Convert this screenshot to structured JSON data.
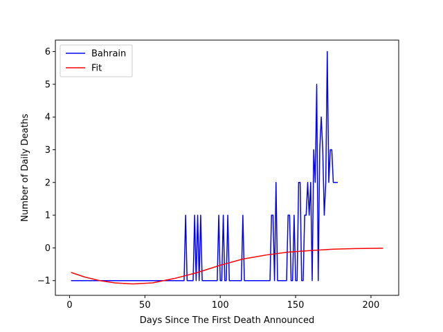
{
  "chart_data": {
    "type": "line",
    "title": "",
    "xlabel": "Days Since The First Death Announced",
    "ylabel": "Number of Daily Deaths",
    "xlim": [
      -9.4,
      218.4
    ],
    "ylim": [
      -1.45,
      6.35
    ],
    "xticks": [
      0,
      50,
      100,
      150,
      200
    ],
    "yticks": [
      -1,
      0,
      1,
      2,
      3,
      4,
      5,
      6
    ],
    "xtick_labels": [
      "0",
      "50",
      "100",
      "150",
      "200"
    ],
    "ytick_labels": [
      "−1",
      "0",
      "1",
      "2",
      "3",
      "4",
      "5",
      "6"
    ],
    "grid": false,
    "legend": {
      "position": "top-left",
      "entries": [
        "Bahrain",
        "Fit"
      ]
    },
    "series": [
      {
        "name": "Bahrain",
        "color": "#0000ff",
        "points": [
          [
            1,
            -1
          ],
          [
            76,
            -1
          ],
          [
            77,
            1
          ],
          [
            78,
            -1
          ],
          [
            82,
            -1
          ],
          [
            83,
            1
          ],
          [
            84,
            -1
          ],
          [
            85,
            1
          ],
          [
            86,
            -1
          ],
          [
            87,
            1
          ],
          [
            88,
            -1
          ],
          [
            98,
            -1
          ],
          [
            99,
            1
          ],
          [
            100,
            -1
          ],
          [
            101,
            -1
          ],
          [
            102,
            1
          ],
          [
            103,
            -1
          ],
          [
            104,
            -1
          ],
          [
            105,
            1
          ],
          [
            106,
            -1
          ],
          [
            114,
            -1
          ],
          [
            115,
            1
          ],
          [
            116,
            -1
          ],
          [
            133,
            -1
          ],
          [
            134,
            1
          ],
          [
            135,
            1
          ],
          [
            136,
            -1
          ],
          [
            137,
            2
          ],
          [
            138,
            -1
          ],
          [
            144,
            -1
          ],
          [
            145,
            1
          ],
          [
            146,
            1
          ],
          [
            147,
            -1
          ],
          [
            148,
            -1
          ],
          [
            149,
            1
          ],
          [
            150,
            -1
          ],
          [
            151,
            -1
          ],
          [
            152,
            2
          ],
          [
            153,
            2
          ],
          [
            154,
            -1
          ],
          [
            155,
            -1
          ],
          [
            156,
            1
          ],
          [
            157,
            1
          ],
          [
            158,
            2
          ],
          [
            159,
            1
          ],
          [
            160,
            2
          ],
          [
            161,
            -1
          ],
          [
            162,
            3
          ],
          [
            163,
            2
          ],
          [
            164,
            5
          ],
          [
            165,
            -1
          ],
          [
            166,
            3
          ],
          [
            167,
            4
          ],
          [
            168,
            3
          ],
          [
            169,
            1
          ],
          [
            170,
            2
          ],
          [
            171,
            6
          ],
          [
            172,
            2
          ],
          [
            173,
            3
          ],
          [
            174,
            3
          ],
          [
            175,
            2
          ],
          [
            176,
            2
          ],
          [
            178,
            2
          ]
        ]
      },
      {
        "name": "Fit",
        "color": "#ff0000",
        "points": [
          [
            1,
            -0.75
          ],
          [
            10,
            -0.89
          ],
          [
            20,
            -1.0
          ],
          [
            30,
            -1.07
          ],
          [
            42,
            -1.1
          ],
          [
            55,
            -1.07
          ],
          [
            70,
            -0.93
          ],
          [
            85,
            -0.75
          ],
          [
            100,
            -0.53
          ],
          [
            115,
            -0.34
          ],
          [
            130,
            -0.22
          ],
          [
            145,
            -0.13
          ],
          [
            160,
            -0.08
          ],
          [
            175,
            -0.04
          ],
          [
            190,
            -0.02
          ],
          [
            208,
            -0.01
          ]
        ]
      }
    ]
  }
}
